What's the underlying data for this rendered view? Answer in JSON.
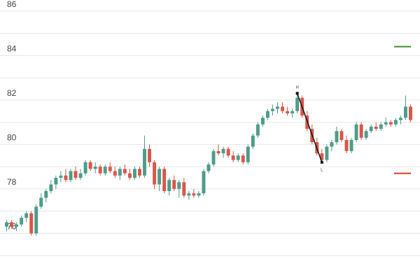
{
  "chart_data": {
    "type": "candlestick",
    "ylim": [
      73.9,
      86.5
    ],
    "yticks": [
      76,
      78,
      80,
      82,
      84,
      86
    ],
    "grid": true,
    "minor_grid": true,
    "up_color": "#4e9c8a",
    "down_color": "#d9574a",
    "ohlc": [
      [
        76.3,
        76.6,
        76.1,
        76.5
      ],
      [
        76.5,
        76.6,
        76.2,
        76.3
      ],
      [
        76.3,
        76.5,
        76.1,
        76.4
      ],
      [
        76.4,
        76.8,
        76.3,
        76.7
      ],
      [
        76.7,
        77.0,
        76.5,
        76.9
      ],
      [
        76.9,
        77.0,
        75.9,
        76.0
      ],
      [
        76.0,
        77.3,
        75.9,
        77.2
      ],
      [
        77.2,
        77.8,
        77.1,
        77.6
      ],
      [
        77.6,
        78.0,
        77.4,
        77.9
      ],
      [
        77.9,
        78.4,
        77.8,
        78.2
      ],
      [
        78.2,
        78.6,
        78.0,
        78.5
      ],
      [
        78.5,
        78.8,
        78.3,
        78.6
      ],
      [
        78.6,
        78.9,
        78.3,
        78.4
      ],
      [
        78.4,
        78.9,
        78.3,
        78.8
      ],
      [
        78.8,
        79.0,
        78.4,
        78.5
      ],
      [
        78.5,
        78.9,
        78.4,
        78.7
      ],
      [
        78.7,
        79.3,
        78.6,
        79.2
      ],
      [
        79.2,
        79.3,
        78.8,
        78.9
      ],
      [
        78.9,
        79.2,
        78.7,
        79.0
      ],
      [
        79.0,
        79.1,
        78.6,
        78.7
      ],
      [
        78.7,
        79.1,
        78.6,
        79.0
      ],
      [
        79.0,
        79.2,
        78.7,
        78.8
      ],
      [
        78.8,
        79.0,
        78.5,
        78.6
      ],
      [
        78.6,
        79.0,
        78.4,
        78.9
      ],
      [
        78.9,
        79.1,
        78.6,
        78.7
      ],
      [
        78.7,
        78.9,
        78.4,
        78.5
      ],
      [
        78.5,
        79.0,
        78.4,
        78.9
      ],
      [
        78.9,
        79.0,
        78.5,
        78.6
      ],
      [
        78.6,
        80.4,
        78.5,
        79.8
      ],
      [
        79.8,
        80.0,
        79.0,
        79.2
      ],
      [
        79.2,
        79.3,
        78.0,
        78.2
      ],
      [
        78.2,
        79.0,
        77.9,
        78.9
      ],
      [
        78.9,
        79.0,
        77.8,
        77.9
      ],
      [
        77.9,
        78.5,
        77.7,
        78.4
      ],
      [
        78.4,
        78.6,
        77.9,
        78.0
      ],
      [
        78.0,
        78.4,
        77.6,
        78.3
      ],
      [
        78.3,
        78.5,
        77.6,
        77.7
      ],
      [
        77.7,
        77.9,
        77.5,
        77.8
      ],
      [
        77.8,
        78.0,
        77.6,
        77.7
      ],
      [
        77.7,
        77.9,
        77.6,
        77.8
      ],
      [
        77.8,
        78.9,
        77.7,
        78.8
      ],
      [
        78.8,
        79.2,
        78.7,
        79.1
      ],
      [
        79.1,
        79.8,
        79.0,
        79.7
      ],
      [
        79.7,
        80.0,
        79.5,
        79.6
      ],
      [
        79.6,
        79.9,
        79.4,
        79.8
      ],
      [
        79.8,
        79.9,
        79.4,
        79.5
      ],
      [
        79.5,
        79.7,
        79.2,
        79.3
      ],
      [
        79.3,
        79.6,
        79.2,
        79.5
      ],
      [
        79.5,
        79.6,
        79.1,
        79.2
      ],
      [
        79.2,
        80.0,
        79.1,
        79.9
      ],
      [
        79.9,
        80.5,
        79.8,
        80.4
      ],
      [
        80.4,
        81.0,
        80.3,
        80.9
      ],
      [
        80.9,
        81.3,
        80.8,
        81.2
      ],
      [
        81.2,
        81.6,
        81.1,
        81.5
      ],
      [
        81.5,
        81.8,
        81.3,
        81.6
      ],
      [
        81.6,
        81.9,
        81.4,
        81.7
      ],
      [
        81.7,
        81.9,
        81.4,
        81.5
      ],
      [
        81.5,
        81.7,
        81.3,
        81.4
      ],
      [
        81.4,
        81.6,
        81.2,
        81.5
      ],
      [
        81.5,
        82.3,
        81.4,
        82.1
      ],
      [
        82.1,
        82.2,
        81.2,
        81.3
      ],
      [
        81.3,
        81.5,
        80.6,
        80.7
      ],
      [
        80.7,
        80.9,
        80.0,
        80.1
      ],
      [
        80.1,
        80.3,
        79.5,
        79.6
      ],
      [
        79.6,
        79.8,
        79.2,
        79.3
      ],
      [
        79.3,
        80.0,
        79.2,
        79.9
      ],
      [
        79.9,
        80.2,
        79.7,
        80.1
      ],
      [
        80.1,
        80.8,
        80.0,
        80.6
      ],
      [
        80.6,
        80.7,
        80.1,
        80.2
      ],
      [
        80.2,
        80.4,
        79.6,
        79.7
      ],
      [
        79.7,
        80.3,
        79.6,
        80.2
      ],
      [
        80.2,
        81.0,
        80.1,
        80.9
      ],
      [
        80.9,
        81.0,
        80.2,
        80.3
      ],
      [
        80.3,
        80.7,
        80.2,
        80.6
      ],
      [
        80.6,
        80.9,
        80.5,
        80.8
      ],
      [
        80.8,
        81.0,
        80.6,
        80.7
      ],
      [
        80.7,
        81.0,
        80.6,
        80.9
      ],
      [
        80.9,
        81.2,
        80.8,
        81.0
      ],
      [
        81.0,
        81.1,
        80.8,
        80.9
      ],
      [
        80.9,
        81.2,
        80.8,
        81.1
      ],
      [
        81.1,
        81.3,
        80.9,
        81.2
      ],
      [
        81.2,
        82.2,
        81.1,
        81.7
      ],
      [
        81.7,
        81.8,
        81.0,
        81.1
      ]
    ],
    "levels": [
      {
        "value": 84.4,
        "color": "#3f8f2f"
      },
      {
        "value": 78.7,
        "color": "#d23b2b"
      }
    ],
    "trend_line": {
      "start": 82.3,
      "end": 79.2,
      "start_label": "H",
      "end_label": "L",
      "color": "#111"
    }
  }
}
